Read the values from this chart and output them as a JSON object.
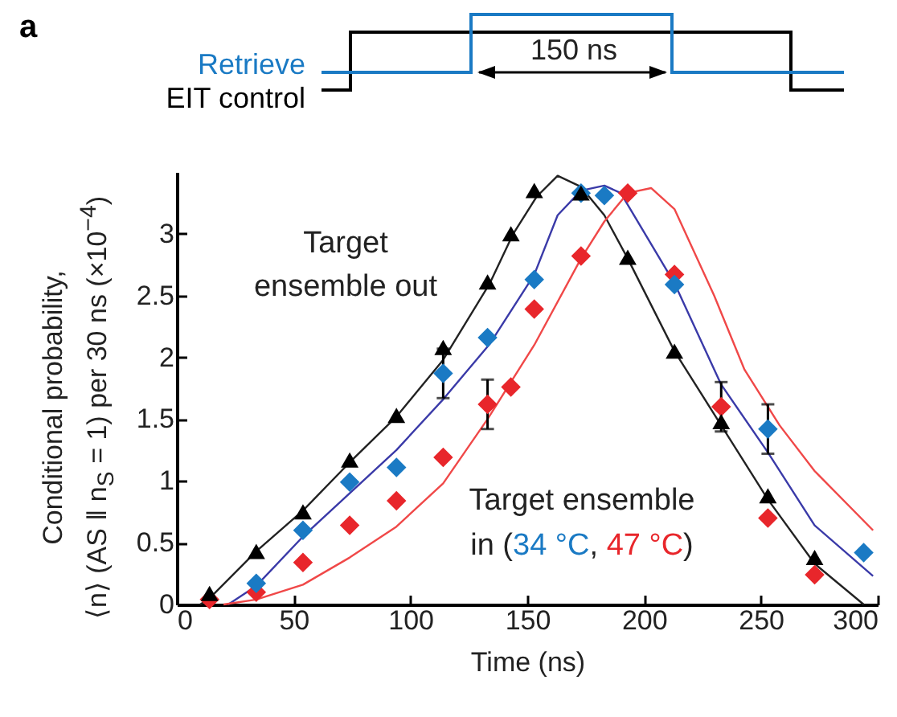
{
  "chart_data": {
    "type": "scatter",
    "xlabel": "Time (ns)",
    "ylabel": "Conditional probability, ⟨n⟩ (AS ‖ n$_{S}$ = 1) per 30 ns (×10$^{−4}$)",
    "xlim": [
      0,
      300
    ],
    "xticks": [
      0,
      50,
      100,
      150,
      200,
      250,
      300
    ],
    "ylim": [
      0,
      3.5
    ],
    "yticks": [
      0,
      0.5,
      1,
      1.5,
      2,
      2.5,
      3
    ],
    "annotations": [
      "a",
      "Retrieve",
      "EIT control",
      "150 ns",
      "Target ensemble out",
      "Target ensemble in (",
      ", ",
      ")"
    ],
    "series": [
      {
        "type": "line",
        "color": "#222222",
        "x": [
          10,
          14,
          34,
          54,
          74,
          94,
          114,
          134,
          144,
          154,
          163,
          173,
          183,
          193,
          213,
          233,
          253,
          273,
          294
        ],
        "values": [
          0,
          0.05,
          0.43,
          0.76,
          1.15,
          1.52,
          1.98,
          2.6,
          3.0,
          3.3,
          3.47,
          3.38,
          3.15,
          2.8,
          2.05,
          1.45,
          0.85,
          0.33,
          0
        ]
      },
      {
        "type": "line",
        "color": "#3a3aa8",
        "x": [
          22,
          34,
          54,
          74,
          94,
          114,
          134,
          153,
          163,
          173,
          183,
          190,
          213,
          233,
          253,
          273,
          298
        ],
        "values": [
          0,
          0.15,
          0.55,
          0.9,
          1.25,
          1.66,
          2.11,
          2.67,
          3.15,
          3.35,
          3.39,
          3.33,
          2.6,
          1.78,
          1.23,
          0.64,
          0.23
        ]
      },
      {
        "type": "line",
        "color": "#f04848",
        "x": [
          20,
          34,
          54,
          74,
          94,
          114,
          133,
          153,
          173,
          183,
          193,
          203,
          213,
          230,
          243,
          258,
          273,
          298
        ],
        "values": [
          0,
          0.04,
          0.16,
          0.38,
          0.63,
          0.98,
          1.5,
          2.1,
          2.8,
          3.1,
          3.33,
          3.37,
          3.2,
          2.5,
          1.9,
          1.45,
          1.08,
          0.6
        ]
      },
      {
        "marker": "triangle",
        "color": "#000000",
        "x": [
          14,
          34,
          54,
          74,
          94,
          114,
          133,
          143,
          153,
          173,
          193,
          213,
          233,
          253,
          273
        ],
        "values": [
          0.09,
          0.43,
          0.75,
          1.17,
          1.53,
          2.08,
          2.61,
          3.0,
          3.35,
          3.33,
          2.81,
          2.05,
          1.48,
          0.88,
          0.38
        ]
      },
      {
        "marker": "diamond",
        "name": "34 °C",
        "color": "#1a7ac4",
        "x": [
          34,
          54,
          74,
          94,
          114,
          133,
          153,
          173,
          183,
          213,
          253,
          294
        ],
        "values": [
          0.17,
          0.6,
          0.99,
          1.11,
          1.87,
          2.16,
          2.63,
          3.33,
          3.31,
          2.59,
          1.42,
          0.42
        ],
        "errors": [
          null,
          null,
          null,
          null,
          0.2,
          null,
          null,
          null,
          null,
          null,
          0.2,
          null
        ]
      },
      {
        "marker": "diamond",
        "name": "47 °C",
        "color": "#e8262b",
        "x": [
          14,
          34,
          54,
          74,
          94,
          114,
          133,
          143,
          153,
          173,
          193,
          213,
          233,
          253,
          273
        ],
        "values": [
          0.04,
          0.1,
          0.34,
          0.64,
          0.84,
          1.19,
          1.62,
          1.76,
          2.39,
          2.82,
          3.33,
          2.67,
          1.6,
          0.7,
          0.24
        ],
        "errors": [
          null,
          null,
          null,
          null,
          null,
          null,
          0.2,
          null,
          null,
          null,
          null,
          null,
          0.2,
          null,
          null
        ]
      }
    ]
  }
}
